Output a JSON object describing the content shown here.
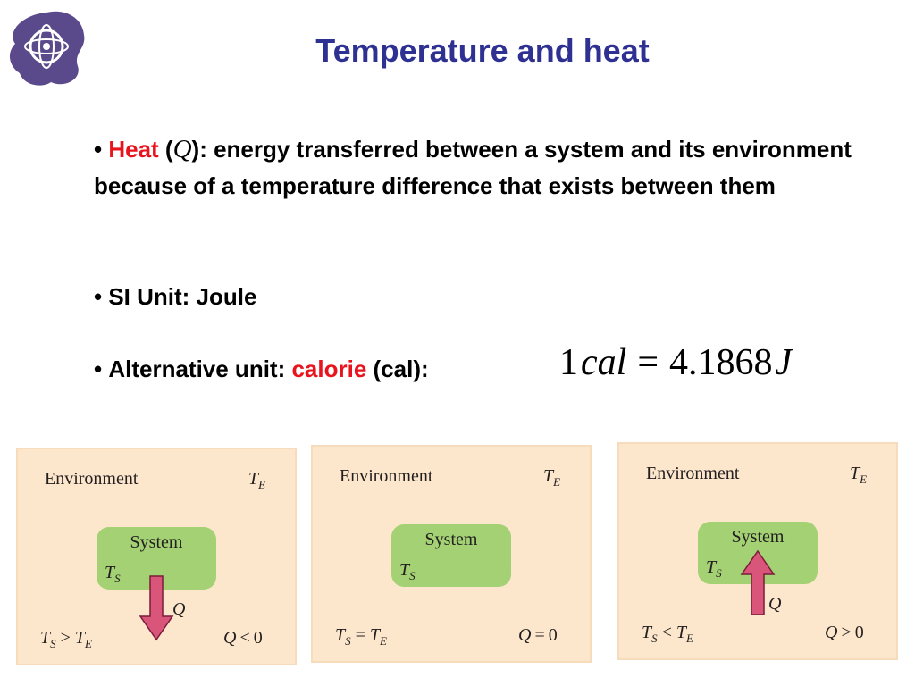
{
  "header": {
    "title": "Temperature and heat"
  },
  "bullets": [
    {
      "term": "Heat",
      "open": " (",
      "symbol": "Q",
      "rest": "): energy transferred between a system and its environment because of a temperature difference that exists between them"
    },
    {
      "text": "SI Unit: Joule"
    },
    {
      "lead": "Alternative unit: ",
      "term": "calorie",
      "rest": " (cal):"
    }
  ],
  "formula": {
    "lhs_number": 1,
    "lhs_unit": "cal",
    "operator": "=",
    "rhs_number": 4.1868,
    "rhs_unit": "J"
  },
  "panels": [
    {
      "environment": "Environment",
      "env_temp": {
        "symbol": "T",
        "sub": "E"
      },
      "system": "System",
      "sys_temp": {
        "symbol": "T",
        "sub": "S"
      },
      "heat": "Q",
      "condition": {
        "left": {
          "symbol": "T",
          "sub": "S"
        },
        "op": ">",
        "right": {
          "symbol": "T",
          "sub": "E"
        }
      },
      "heat_condition": {
        "symbol": "Q",
        "op": "<",
        "value": 0
      }
    },
    {
      "environment": "Environment",
      "env_temp": {
        "symbol": "T",
        "sub": "E"
      },
      "system": "System",
      "sys_temp": {
        "symbol": "T",
        "sub": "S"
      },
      "condition": {
        "left": {
          "symbol": "T",
          "sub": "S"
        },
        "op": "=",
        "right": {
          "symbol": "T",
          "sub": "E"
        }
      },
      "heat_condition": {
        "symbol": "Q",
        "op": "=",
        "value": 0
      }
    },
    {
      "environment": "Environment",
      "env_temp": {
        "symbol": "T",
        "sub": "E"
      },
      "system": "System",
      "sys_temp": {
        "symbol": "T",
        "sub": "S"
      },
      "heat": "Q",
      "condition": {
        "left": {
          "symbol": "T",
          "sub": "S"
        },
        "op": "<",
        "right": {
          "symbol": "T",
          "sub": "E"
        }
      },
      "heat_condition": {
        "symbol": "Q",
        "op": ">",
        "value": 0
      }
    }
  ]
}
